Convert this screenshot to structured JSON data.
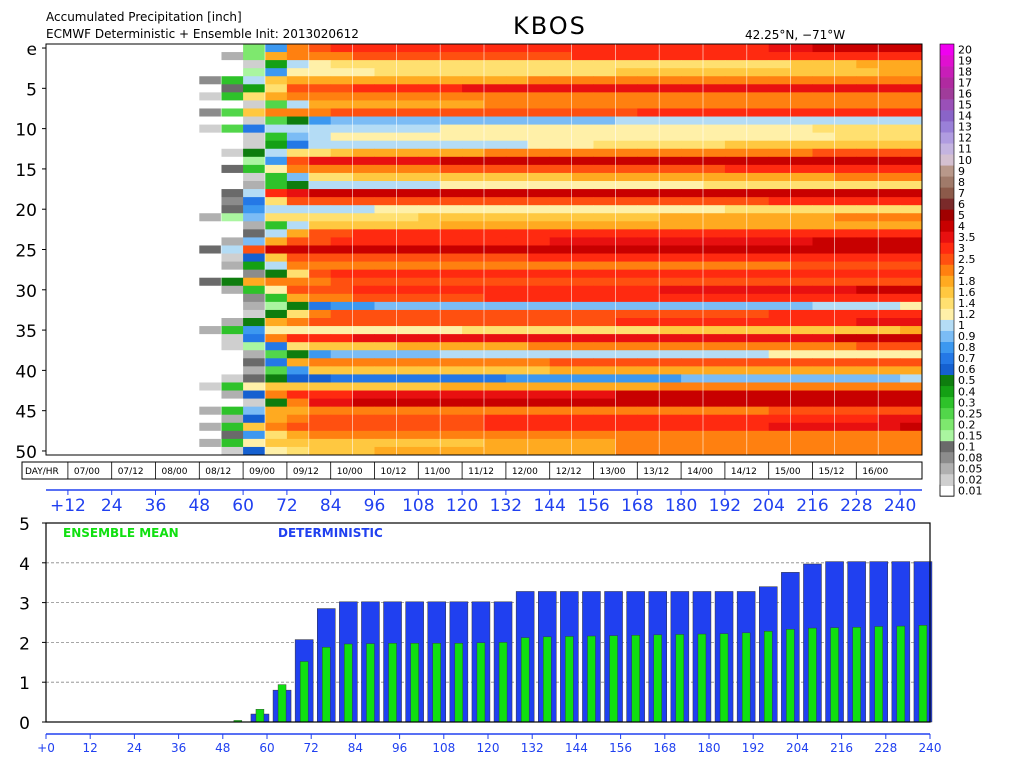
{
  "header": {
    "title": "Accumulated Precipitation [inch]",
    "subtitle": "ECMWF Deterministic + Ensemble Init: 2013020612",
    "station": "KBOS",
    "location": "42.25°N, −71°W"
  },
  "colorbar": {
    "levels": [
      "0.01",
      "0.02",
      "0.05",
      "0.08",
      "0.1",
      "0.15",
      "0.2",
      "0.25",
      "0.3",
      "0.4",
      "0.5",
      "0.6",
      "0.7",
      "0.8",
      "0.9",
      "1",
      "1.2",
      "1.4",
      "1.6",
      "1.8",
      "2",
      "2.5",
      "3",
      "3.5",
      "4",
      "5",
      "6",
      "7",
      "8",
      "9",
      "10",
      "11",
      "12",
      "13",
      "14",
      "15",
      "16",
      "17",
      "18",
      "19",
      "20"
    ],
    "colors": [
      "#ffffff",
      "#cfcfcf",
      "#b0b0b0",
      "#8c8c8c",
      "#6a6a6a",
      "#aaf5a0",
      "#7ee86e",
      "#52d64a",
      "#2ec22a",
      "#14a014",
      "#0e7d0e",
      "#1560d0",
      "#2478e6",
      "#3c98f0",
      "#7bbcf5",
      "#b4dcf5",
      "#fff0a8",
      "#ffe070",
      "#ffc840",
      "#ffaa20",
      "#ff8010",
      "#ff5010",
      "#ff2a10",
      "#e81010",
      "#c80000",
      "#a00000",
      "#7a2a2a",
      "#8c5a4a",
      "#a07a6a",
      "#b8988a",
      "#d4c0d0",
      "#c4b4e0",
      "#b09ce0",
      "#9a80d8",
      "#8a64c8",
      "#9a50b8",
      "#a03c9a",
      "#b02aa0",
      "#c81eb8",
      "#e010d0",
      "#f000f0"
    ]
  },
  "heatmap": {
    "row_ticks": [
      "e",
      "5",
      "10",
      "15",
      "20",
      "25",
      "30",
      "35",
      "40",
      "45",
      "50"
    ],
    "row_count": 51,
    "date_label": "DAY/HR",
    "dates": [
      "07/00",
      "07/12",
      "08/00",
      "08/12",
      "09/00",
      "09/12",
      "10/00",
      "10/12",
      "11/00",
      "11/12",
      "12/00",
      "12/12",
      "13/00",
      "13/12",
      "14/00",
      "14/12",
      "15/00",
      "15/12",
      "16/00"
    ],
    "hour_labels": [
      "+12",
      "24",
      "36",
      "48",
      "60",
      "72",
      "84",
      "96",
      "108",
      "120",
      "132",
      "144",
      "156",
      "168",
      "180",
      "192",
      "204",
      "216",
      "228",
      "240"
    ]
  },
  "chart_data": [
    {
      "type": "heatmap",
      "title": "Accumulated Precipitation [inch]",
      "x_hours": [
        6,
        12,
        18,
        24,
        30,
        36,
        42,
        48,
        54,
        60,
        66,
        72,
        78,
        84,
        90,
        96,
        102,
        108,
        114,
        120,
        126,
        132,
        138,
        144,
        150,
        156,
        162,
        168,
        174,
        180,
        186,
        192,
        198,
        204,
        210,
        216,
        222,
        228,
        234,
        240
      ],
      "rows": [
        "deterministic (e) + 50 ensemble members"
      ]
    },
    {
      "type": "bar",
      "xlim": [
        0,
        240
      ],
      "ylim": [
        0,
        5
      ],
      "xticks": [
        "+0",
        "12",
        "24",
        "36",
        "48",
        "60",
        "72",
        "84",
        "96",
        "108",
        "120",
        "132",
        "144",
        "156",
        "168",
        "180",
        "192",
        "204",
        "216",
        "228",
        "240"
      ],
      "yticks": [
        "0",
        "1",
        "2",
        "3",
        "4",
        "5"
      ],
      "x": [
        6,
        12,
        18,
        24,
        30,
        36,
        42,
        48,
        54,
        60,
        66,
        72,
        78,
        84,
        90,
        96,
        102,
        108,
        114,
        120,
        126,
        132,
        138,
        144,
        150,
        156,
        162,
        168,
        174,
        180,
        186,
        192,
        198,
        204,
        210,
        216,
        222,
        228,
        234,
        240
      ],
      "series": [
        {
          "name": "DETERMINISTIC",
          "color": "#2040f0",
          "values": [
            0,
            0,
            0,
            0,
            0,
            0,
            0,
            0,
            0,
            0.2,
            0.8,
            2.07,
            2.85,
            3.02,
            3.02,
            3.02,
            3.02,
            3.02,
            3.02,
            3.02,
            3.02,
            3.28,
            3.28,
            3.28,
            3.28,
            3.28,
            3.28,
            3.28,
            3.28,
            3.28,
            3.28,
            3.28,
            3.4,
            3.76,
            3.97,
            4.03,
            4.03,
            4.03,
            4.03,
            4.03
          ]
        },
        {
          "name": "ENSEMBLE MEAN",
          "color": "#10e010",
          "values": [
            0,
            0,
            0,
            0,
            0,
            0,
            0,
            0,
            0.04,
            0.32,
            0.94,
            1.52,
            1.88,
            1.96,
            1.97,
            1.98,
            1.98,
            1.98,
            1.98,
            1.99,
            2.0,
            2.12,
            2.14,
            2.15,
            2.16,
            2.17,
            2.18,
            2.19,
            2.2,
            2.21,
            2.22,
            2.24,
            2.28,
            2.33,
            2.36,
            2.37,
            2.38,
            2.4,
            2.41,
            2.43
          ]
        }
      ]
    }
  ]
}
